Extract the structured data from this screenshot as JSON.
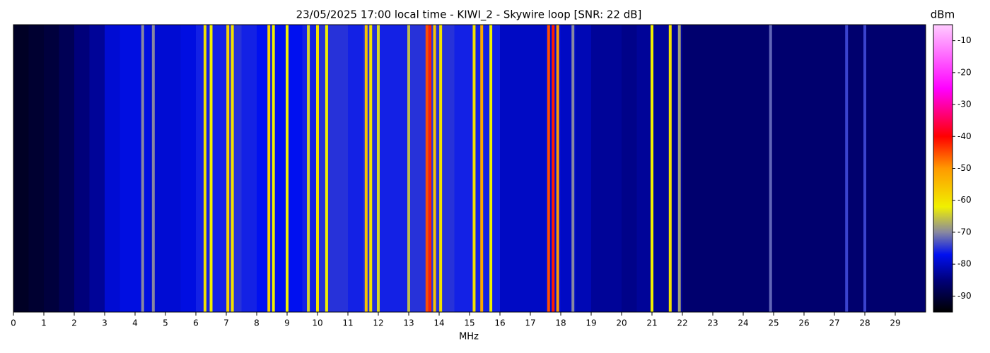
{
  "chart_data": {
    "type": "heatmap",
    "title": "23/05/2025 17:00 local time - KIWI_2 - Skywire loop [SNR: 22 dB]",
    "xlabel": "MHz",
    "colorbar_label": "dBm",
    "xlim": [
      0,
      30
    ],
    "xticks": [
      0,
      1,
      2,
      3,
      4,
      5,
      6,
      7,
      8,
      9,
      10,
      11,
      12,
      13,
      14,
      15,
      16,
      17,
      18,
      19,
      20,
      21,
      22,
      23,
      24,
      25,
      26,
      27,
      28,
      29
    ],
    "zlim": [
      -95,
      -5
    ],
    "zticks": [
      -10,
      -20,
      -30,
      -40,
      -50,
      -60,
      -70,
      -80,
      -90
    ],
    "colormap": [
      [
        -95,
        "#000000"
      ],
      [
        -85,
        "#00007a"
      ],
      [
        -77,
        "#0010f0"
      ],
      [
        -70,
        "#8888a0"
      ],
      [
        -62,
        "#f0f000"
      ],
      [
        -50,
        "#ff9900"
      ],
      [
        -40,
        "#ff0000"
      ],
      [
        -25,
        "#ff00ff"
      ],
      [
        -5,
        "#ffccff"
      ]
    ],
    "columns": {
      "x": [
        0.25,
        0.75,
        1.25,
        1.75,
        2.25,
        2.75,
        3.25,
        3.75,
        4.25,
        4.75,
        5.25,
        5.75,
        6.25,
        6.75,
        7.25,
        7.75,
        8.25,
        8.75,
        9.25,
        9.75,
        10.25,
        10.75,
        11.25,
        11.75,
        12.25,
        12.75,
        13.25,
        13.75,
        14.25,
        14.75,
        15.25,
        15.75,
        16.25,
        16.75,
        17.25,
        17.75,
        18.25,
        18.75,
        19.25,
        19.75,
        20.25,
        20.75,
        21.25,
        21.75,
        22.25,
        22.75,
        23.25,
        23.75,
        24.25,
        24.75,
        25.25,
        25.75,
        26.25,
        26.75,
        27.25,
        27.75,
        28.25,
        28.75,
        29.25,
        29.75
      ],
      "values": [
        -92,
        -91,
        -90,
        -88,
        -85,
        -83,
        -79,
        -78,
        -78,
        -79,
        -79,
        -78,
        -76,
        -76,
        -75,
        -76,
        -77,
        -77,
        -77,
        -76,
        -75,
        -75,
        -76,
        -75,
        -76,
        -76,
        -75,
        -75,
        -75,
        -76,
        -76,
        -76,
        -80,
        -80,
        -80,
        -79,
        -80,
        -81,
        -83,
        -83,
        -84,
        -83,
        -83,
        -83,
        -86,
        -86,
        -86,
        -86,
        -86,
        -86,
        -86,
        -86,
        -86,
        -86,
        -86,
        -86,
        -86,
        -86,
        -86,
        -86
      ]
    },
    "carriers": {
      "x": [
        4.25,
        4.6,
        6.3,
        6.5,
        7.05,
        7.2,
        8.4,
        8.55,
        9.0,
        9.7,
        10.0,
        10.3,
        11.6,
        11.75,
        12.0,
        13.0,
        13.6,
        13.7,
        13.85,
        14.05,
        15.15,
        15.4,
        15.7,
        17.6,
        17.75,
        17.9,
        18.4,
        21.0,
        21.6,
        21.9,
        24.9,
        27.4,
        28.0
      ],
      "values": [
        -70,
        -70,
        -60,
        -62,
        -58,
        -60,
        -58,
        -62,
        -62,
        -64,
        -60,
        -62,
        -56,
        -60,
        -64,
        -66,
        -45,
        -42,
        -56,
        -60,
        -60,
        -52,
        -62,
        -45,
        -42,
        -50,
        -70,
        -62,
        -60,
        -68,
        -72,
        -74,
        -74
      ]
    }
  }
}
